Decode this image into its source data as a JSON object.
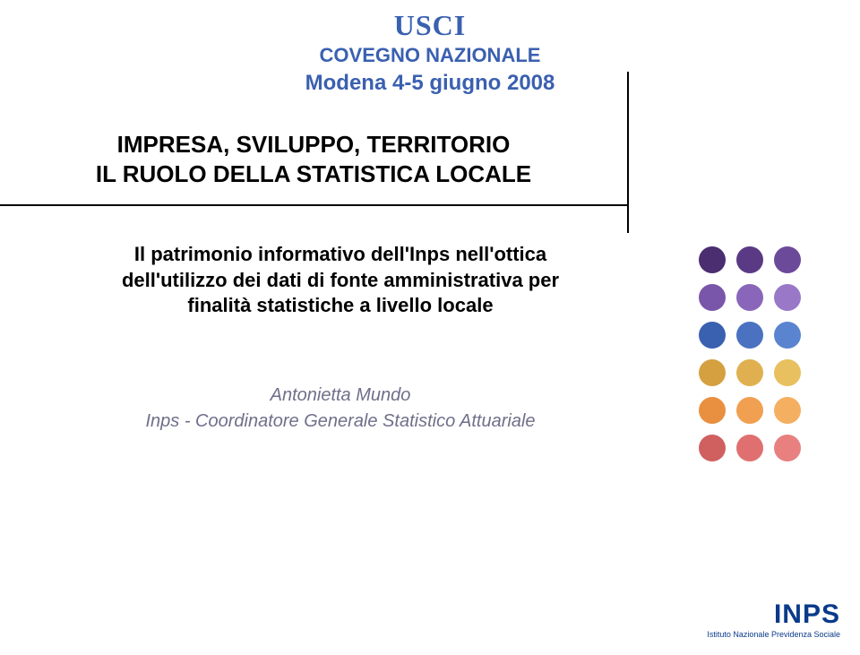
{
  "header": {
    "org": "USCI",
    "conference": "COVEGNO NAZIONALE",
    "date_place": "Modena 4-5 giugno 2008"
  },
  "title": {
    "line1": "IMPRESA, SVILUPPO, TERRITORIO",
    "line2": "IL RUOLO DELLA STATISTICA LOCALE"
  },
  "subtitle": "Il patrimonio informativo dell'Inps nell'ottica dell'utilizzo dei dati di fonte amministrativa per finalità statistiche a livello locale",
  "author": {
    "name": "Antonietta Mundo",
    "role": "Inps - Coordinatore Generale Statistico Attuariale"
  },
  "logo": {
    "name": "INPS",
    "tagline": "Istituto Nazionale Previdenza Sociale"
  },
  "dots": {
    "colors_row1": [
      "#4a2e70",
      "#5a3a85",
      "#6c4a9a"
    ],
    "colors_row2": [
      "#7a56aa",
      "#8a66ba",
      "#9a78c8"
    ],
    "colors_row3": [
      "#3a60b0",
      "#4a72c0",
      "#5a84d0"
    ],
    "colors_row4": [
      "#d4a040",
      "#e0b050",
      "#e8c060"
    ],
    "colors_row5": [
      "#e89040",
      "#f0a050",
      "#f4b060"
    ],
    "colors_row6": [
      "#d06060",
      "#e07070",
      "#e88080"
    ],
    "radius": 15,
    "spacing": 42
  },
  "style": {
    "accent_blue": "#3a60b0",
    "logo_blue": "#0a3a8a",
    "author_gray": "#6f6f8a"
  }
}
